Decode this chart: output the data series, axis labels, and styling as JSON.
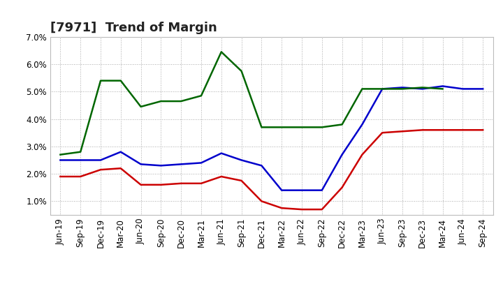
{
  "title": "[7971]  Trend of Margin",
  "x_labels": [
    "Jun-19",
    "Sep-19",
    "Dec-19",
    "Mar-20",
    "Jun-20",
    "Sep-20",
    "Dec-20",
    "Mar-21",
    "Jun-21",
    "Sep-21",
    "Dec-21",
    "Mar-22",
    "Jun-22",
    "Sep-22",
    "Dec-22",
    "Mar-23",
    "Jun-23",
    "Sep-23",
    "Dec-23",
    "Mar-24",
    "Jun-24",
    "Sep-24"
  ],
  "ordinary_income": [
    2.5,
    2.5,
    2.5,
    2.8,
    2.35,
    2.3,
    2.35,
    2.4,
    2.75,
    2.5,
    2.3,
    1.4,
    1.4,
    1.4,
    2.7,
    3.8,
    5.1,
    5.15,
    5.1,
    5.2,
    5.1,
    5.1
  ],
  "net_income": [
    1.9,
    1.9,
    2.15,
    2.2,
    1.6,
    1.6,
    1.65,
    1.65,
    1.9,
    1.75,
    1.0,
    0.75,
    0.7,
    0.7,
    1.5,
    2.7,
    3.5,
    3.55,
    3.6,
    3.6,
    3.6,
    3.6
  ],
  "operating_cashflow": [
    2.7,
    2.8,
    5.4,
    5.4,
    4.45,
    4.65,
    4.65,
    4.85,
    6.45,
    5.75,
    3.7,
    3.7,
    3.7,
    3.7,
    3.8,
    5.1,
    5.1,
    5.1,
    5.15,
    5.1,
    null,
    null
  ],
  "ylim": [
    0.5,
    7.0
  ],
  "yticks": [
    1.0,
    2.0,
    3.0,
    4.0,
    5.0,
    6.0,
    7.0
  ],
  "color_blue": "#0000CC",
  "color_red": "#CC0000",
  "color_green": "#006600",
  "bg_color": "#FFFFFF",
  "grid_color": "#AAAAAA",
  "title_fontsize": 13,
  "label_fontsize": 8.5
}
